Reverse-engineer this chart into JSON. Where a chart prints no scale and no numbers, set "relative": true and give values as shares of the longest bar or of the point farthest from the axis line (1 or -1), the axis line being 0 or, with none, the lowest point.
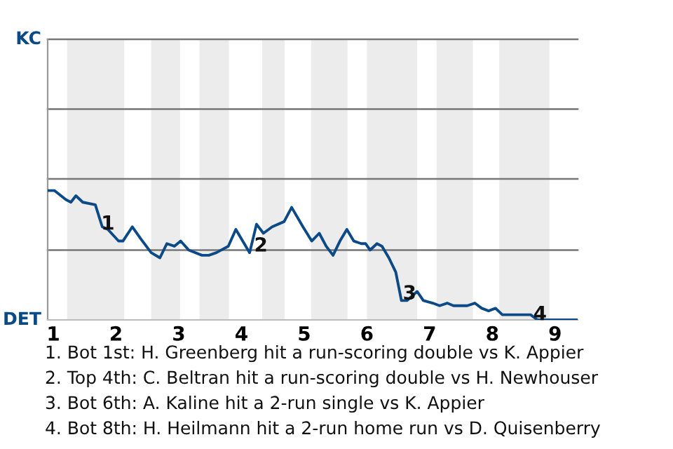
{
  "chart_data": {
    "type": "line",
    "relative": true,
    "x": [
      0.91,
      1.02,
      1.2,
      1.28,
      1.36,
      1.47,
      1.67,
      1.78,
      1.87,
      2.04,
      2.11,
      2.26,
      2.39,
      2.56,
      2.7,
      2.81,
      2.93,
      3.03,
      3.16,
      3.37,
      3.48,
      3.6,
      3.79,
      3.91,
      4.13,
      4.24,
      4.35,
      4.49,
      4.68,
      4.8,
      4.98,
      5.12,
      5.24,
      5.35,
      5.46,
      5.57,
      5.68,
      5.79,
      5.91,
      5.98,
      6.05,
      6.16,
      6.24,
      6.35,
      6.46,
      6.55,
      6.64,
      6.8,
      6.9,
      7.05,
      7.16,
      7.28,
      7.38,
      7.6,
      7.72,
      7.83,
      7.94,
      8.05,
      8.16,
      8.27,
      8.39,
      8.5,
      8.61,
      8.72,
      8.83,
      9.02,
      9.36
    ],
    "series": [
      {
        "color": "#0b4a86",
        "values": [
          1,
          1,
          0.93,
          0.91,
          0.96,
          0.91,
          0.89,
          0.72,
          0.7,
          0.61,
          0.61,
          0.72,
          0.63,
          0.52,
          0.48,
          0.59,
          0.57,
          0.61,
          0.54,
          0.5,
          0.5,
          0.52,
          0.57,
          0.7,
          0.52,
          0.74,
          0.67,
          0.72,
          0.76,
          0.87,
          0.72,
          0.61,
          0.67,
          0.57,
          0.5,
          0.61,
          0.7,
          0.61,
          0.59,
          0.59,
          0.54,
          0.59,
          0.57,
          0.48,
          0.37,
          0.15,
          0.15,
          0.22,
          0.15,
          0.13,
          0.11,
          0.13,
          0.11,
          0.11,
          0.13,
          0.09,
          0.07,
          0.09,
          0.04,
          0.04,
          0.04,
          0.04,
          0.04,
          0,
          0,
          0,
          0
        ]
      }
    ],
    "xlim": [
      0.91,
      9.36
    ],
    "xticks": [
      1,
      2,
      3,
      4,
      5,
      6,
      7,
      8,
      9
    ],
    "ref_lines": [
      {
        "axis": "y",
        "value": 0.54,
        "color": "#777777"
      },
      {
        "axis": "y",
        "value": 1.09,
        "color": "#777777"
      },
      {
        "axis": "y",
        "value": 1.63,
        "color": "#777777"
      },
      {
        "axis": "y",
        "value": 2.17,
        "color": "#777777"
      }
    ],
    "marker": "none",
    "line_style": "solid",
    "bands": [
      {
        "axis": "x",
        "from": 1.22,
        "to": 2.13,
        "color": "#ececec"
      },
      {
        "axis": "x",
        "from": 2.56,
        "to": 3.02,
        "color": "#ececec"
      },
      {
        "axis": "x",
        "from": 3.33,
        "to": 3.8,
        "color": "#ececec"
      },
      {
        "axis": "x",
        "from": 4.33,
        "to": 4.69,
        "color": "#ececec"
      },
      {
        "axis": "x",
        "from": 5.11,
        "to": 5.69,
        "color": "#ececec"
      },
      {
        "axis": "x",
        "from": 6.0,
        "to": 6.8,
        "color": "#ececec"
      },
      {
        "axis": "x",
        "from": 7.11,
        "to": 7.69,
        "color": "#ececec"
      },
      {
        "axis": "x",
        "from": 8.11,
        "to": 8.91,
        "color": "#ececec"
      }
    ],
    "annotations": [
      "KC",
      "DET",
      {
        "text": "1",
        "x": 1.87,
        "y": 0.74
      },
      {
        "text": "2",
        "x": 4.31,
        "y": 0.57
      },
      {
        "text": "3",
        "x": 6.68,
        "y": 0.2
      },
      {
        "text": "4",
        "x": 8.76,
        "y": 0.04
      },
      "1. Bot 1st: H. Greenberg hit a run-scoring double vs K. Appier",
      "2. Top 4th: C. Beltran hit a run-scoring double vs H. Newhouser",
      "3. Bot 6th: A. Kaline hit a 2-run single vs K. Appier",
      "4. Bot 8th: H. Heilmann hit a 2-run home run vs D. Quisenberry"
    ]
  }
}
